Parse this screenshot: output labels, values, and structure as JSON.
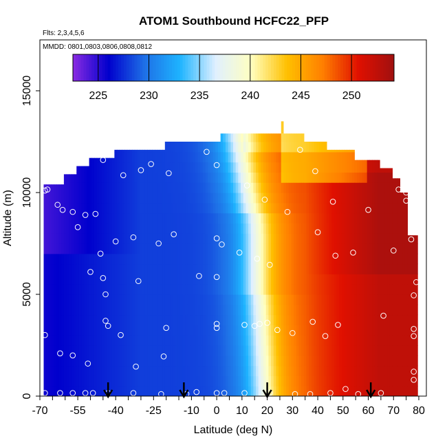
{
  "chart_data": {
    "type": "heatmap",
    "title": "ATOM1 Southbound HCFC22_PFP",
    "flights_label": "Flts: 2,3,4,5,6",
    "dates_label": "MMDD: 0801,0803,0806,0808,0812",
    "xlabel": "Latitude (deg N)",
    "ylabel": "Altitude (m)",
    "xlim": [
      -70,
      83
    ],
    "ylim": [
      0,
      17500
    ],
    "x_ticks": [
      -70,
      -55,
      -40,
      -25,
      -10,
      0,
      10,
      20,
      30,
      40,
      50,
      60,
      70,
      80
    ],
    "x_tick_labels": [
      "-70",
      "-55",
      "-40",
      "-25",
      "-10",
      "0",
      "10",
      "20",
      "30",
      "40",
      "50",
      "60",
      "70",
      "80"
    ],
    "y_ticks": [
      0,
      5000,
      10000,
      15000
    ],
    "y_tick_labels": [
      "0",
      "5000",
      "10000",
      "15000"
    ],
    "colorbar": {
      "min": 222.5,
      "max": 254.2,
      "ticks": [
        225,
        230,
        235,
        240,
        245,
        250
      ],
      "tick_labels": [
        "225",
        "230",
        "235",
        "240",
        "245",
        "250"
      ],
      "colors": [
        "#8a2be2",
        "#0000cd",
        "#1e6fe6",
        "#1eb4ff",
        "#e0f0ff",
        "#ffffc0",
        "#ffc000",
        "#ff7f00",
        "#e01000",
        "#a01010"
      ]
    },
    "profile_markers_lat": [
      -43,
      -13,
      20,
      61
    ],
    "value_surface": {
      "description": "HCFC22 mixing ratio (ppt) interpolated curtain, increasing from south to north",
      "south_value": 230,
      "north_value": 250
    },
    "sample_points": [
      {
        "lat": -68,
        "alt": 10100
      },
      {
        "lat": -67,
        "alt": 10150
      },
      {
        "lat": -63,
        "alt": 9400
      },
      {
        "lat": -61,
        "alt": 9150
      },
      {
        "lat": -57,
        "alt": 9050
      },
      {
        "lat": -52,
        "alt": 8900
      },
      {
        "lat": -48,
        "alt": 8950
      },
      {
        "lat": -55,
        "alt": 8300
      },
      {
        "lat": -46,
        "alt": 7000
      },
      {
        "lat": -40,
        "alt": 7600
      },
      {
        "lat": -33,
        "alt": 7800
      },
      {
        "lat": -23,
        "alt": 7500
      },
      {
        "lat": -17,
        "alt": 7950
      },
      {
        "lat": -50,
        "alt": 6100
      },
      {
        "lat": -45,
        "alt": 5800
      },
      {
        "lat": -44,
        "alt": 5000
      },
      {
        "lat": -31,
        "alt": 5650
      },
      {
        "lat": -7,
        "alt": 5900
      },
      {
        "lat": 0,
        "alt": 5850
      },
      {
        "lat": -44,
        "alt": 3700
      },
      {
        "lat": -43,
        "alt": 3450
      },
      {
        "lat": -68,
        "alt": 3000
      },
      {
        "lat": -38,
        "alt": 3000
      },
      {
        "lat": -20,
        "alt": 3350
      },
      {
        "lat": 0,
        "alt": 3550
      },
      {
        "lat": 0,
        "alt": 3350
      },
      {
        "lat": 11,
        "alt": 3500
      },
      {
        "lat": 15,
        "alt": 3450
      },
      {
        "lat": 17,
        "alt": 3550
      },
      {
        "lat": 20,
        "alt": 3600
      },
      {
        "lat": 24,
        "alt": 3250
      },
      {
        "lat": 30,
        "alt": 3100
      },
      {
        "lat": 38,
        "alt": 3650
      },
      {
        "lat": 43,
        "alt": 2950
      },
      {
        "lat": 48,
        "alt": 3500
      },
      {
        "lat": 66,
        "alt": 3950
      },
      {
        "lat": -62,
        "alt": 2100
      },
      {
        "lat": -57,
        "alt": 2000
      },
      {
        "lat": -51,
        "alt": 1600
      },
      {
        "lat": -32,
        "alt": 1450
      },
      {
        "lat": -21,
        "alt": 1950
      },
      {
        "lat": 78,
        "alt": 3300
      },
      {
        "lat": 78,
        "alt": 2950
      },
      {
        "lat": 78,
        "alt": 1200
      },
      {
        "lat": 78,
        "alt": 800
      },
      {
        "lat": 78,
        "alt": 4950
      },
      {
        "lat": 79,
        "alt": 5600
      },
      {
        "lat": -68,
        "alt": 150
      },
      {
        "lat": -62,
        "alt": 150
      },
      {
        "lat": -57,
        "alt": 150
      },
      {
        "lat": -52,
        "alt": 150
      },
      {
        "lat": -49,
        "alt": 150
      },
      {
        "lat": -43,
        "alt": 150
      },
      {
        "lat": -33,
        "alt": 150
      },
      {
        "lat": -22,
        "alt": 100
      },
      {
        "lat": -12,
        "alt": 100
      },
      {
        "lat": -8,
        "alt": 200
      },
      {
        "lat": 0,
        "alt": 150
      },
      {
        "lat": 3,
        "alt": 150
      },
      {
        "lat": 11,
        "alt": 150
      },
      {
        "lat": 21,
        "alt": 150
      },
      {
        "lat": 31,
        "alt": 100
      },
      {
        "lat": 37,
        "alt": 100
      },
      {
        "lat": 45,
        "alt": 150
      },
      {
        "lat": 51,
        "alt": 350
      },
      {
        "lat": 56,
        "alt": 100
      },
      {
        "lat": 65,
        "alt": 150
      },
      {
        "lat": -45,
        "alt": 11600
      },
      {
        "lat": -37,
        "alt": 10850
      },
      {
        "lat": -30,
        "alt": 11100
      },
      {
        "lat": -26,
        "alt": 11400
      },
      {
        "lat": -19,
        "alt": 10950
      },
      {
        "lat": -4,
        "alt": 12000
      },
      {
        "lat": 0,
        "alt": 11350
      },
      {
        "lat": 12,
        "alt": 10350
      },
      {
        "lat": 19,
        "alt": 9650
      },
      {
        "lat": 28,
        "alt": 9050
      },
      {
        "lat": 33,
        "alt": 12100
      },
      {
        "lat": 39,
        "alt": 11050
      },
      {
        "lat": 46,
        "alt": 9550
      },
      {
        "lat": 60,
        "alt": 9150
      },
      {
        "lat": 67,
        "alt": 11400
      },
      {
        "lat": 72,
        "alt": 10150
      },
      {
        "lat": 75,
        "alt": 9600
      },
      {
        "lat": 0,
        "alt": 7750
      },
      {
        "lat": 2,
        "alt": 7450
      },
      {
        "lat": 9,
        "alt": 7050
      },
      {
        "lat": 16,
        "alt": 6750
      },
      {
        "lat": 21,
        "alt": 6450
      },
      {
        "lat": 40,
        "alt": 8050
      },
      {
        "lat": 47,
        "alt": 6900
      },
      {
        "lat": 54,
        "alt": 7050
      },
      {
        "lat": 70,
        "alt": 7150
      },
      {
        "lat": 77,
        "alt": 7700
      },
      {
        "lat": 75,
        "alt": 10000
      },
      {
        "lat": 77,
        "alt": 9950
      }
    ]
  }
}
